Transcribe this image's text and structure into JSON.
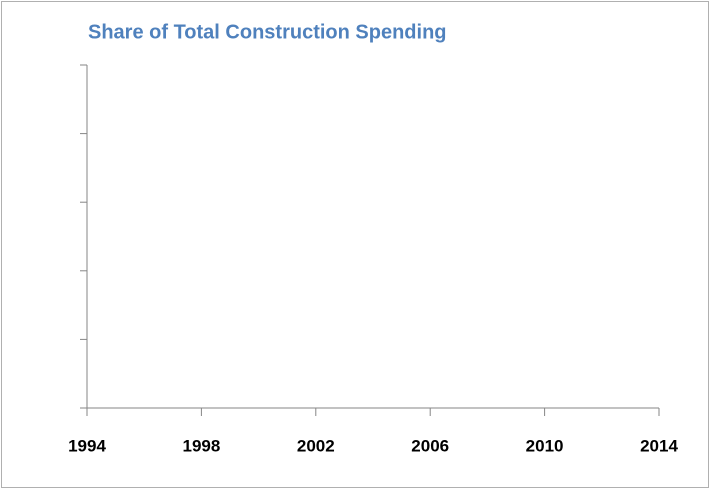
{
  "chart_data": {
    "type": "line",
    "title": "Share of Total Construction Spending",
    "xlim": [
      1994,
      2014
    ],
    "xticks": [
      1994,
      1998,
      2002,
      2006,
      2010,
      2014
    ],
    "color": "#4f81bd"
  }
}
